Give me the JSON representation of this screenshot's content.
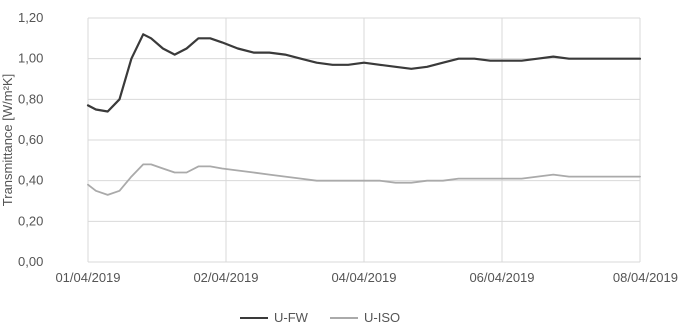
{
  "chart_data": {
    "type": "line",
    "title": "",
    "xlabel": "",
    "ylabel": "Transmittance [W/m²K]",
    "ylim": [
      0,
      1.2
    ],
    "y_ticks": [
      "0,00",
      "0,20",
      "0,40",
      "0,60",
      "0,80",
      "1,00",
      "1,20"
    ],
    "x_ticks": [
      "01/04/2019",
      "02/04/2019",
      "04/04/2019",
      "06/04/2019",
      "08/04/2019"
    ],
    "xlim": [
      0,
      7
    ],
    "grid": true,
    "legend_position": "bottom",
    "series": [
      {
        "name": "U-FW",
        "color": "#3a3a3a",
        "x": [
          0,
          0.1,
          0.25,
          0.4,
          0.55,
          0.7,
          0.8,
          0.95,
          1.1,
          1.25,
          1.4,
          1.55,
          1.7,
          1.9,
          2.1,
          2.3,
          2.5,
          2.7,
          2.9,
          3.1,
          3.3,
          3.5,
          3.7,
          3.9,
          4.1,
          4.3,
          4.5,
          4.7,
          4.9,
          5.1,
          5.3,
          5.5,
          5.7,
          5.9,
          6.1,
          6.3,
          6.5,
          6.7,
          6.9,
          7.0
        ],
        "values": [
          0.77,
          0.75,
          0.74,
          0.8,
          1.0,
          1.12,
          1.1,
          1.05,
          1.02,
          1.05,
          1.1,
          1.1,
          1.08,
          1.05,
          1.03,
          1.03,
          1.02,
          1.0,
          0.98,
          0.97,
          0.97,
          0.98,
          0.97,
          0.96,
          0.95,
          0.96,
          0.98,
          1.0,
          1.0,
          0.99,
          0.99,
          0.99,
          1.0,
          1.01,
          1.0,
          1.0,
          1.0,
          1.0,
          1.0,
          1.0
        ]
      },
      {
        "name": "U-ISO",
        "color": "#aaaaaa",
        "x": [
          0,
          0.1,
          0.25,
          0.4,
          0.55,
          0.7,
          0.8,
          0.95,
          1.1,
          1.25,
          1.4,
          1.55,
          1.7,
          1.9,
          2.1,
          2.3,
          2.5,
          2.7,
          2.9,
          3.1,
          3.3,
          3.5,
          3.7,
          3.9,
          4.1,
          4.3,
          4.5,
          4.7,
          4.9,
          5.1,
          5.3,
          5.5,
          5.7,
          5.9,
          6.1,
          6.3,
          6.5,
          6.7,
          6.9,
          7.0
        ],
        "values": [
          0.38,
          0.35,
          0.33,
          0.35,
          0.42,
          0.48,
          0.48,
          0.46,
          0.44,
          0.44,
          0.47,
          0.47,
          0.46,
          0.45,
          0.44,
          0.43,
          0.42,
          0.41,
          0.4,
          0.4,
          0.4,
          0.4,
          0.4,
          0.39,
          0.39,
          0.4,
          0.4,
          0.41,
          0.41,
          0.41,
          0.41,
          0.41,
          0.42,
          0.43,
          0.42,
          0.42,
          0.42,
          0.42,
          0.42,
          0.42
        ]
      }
    ]
  }
}
